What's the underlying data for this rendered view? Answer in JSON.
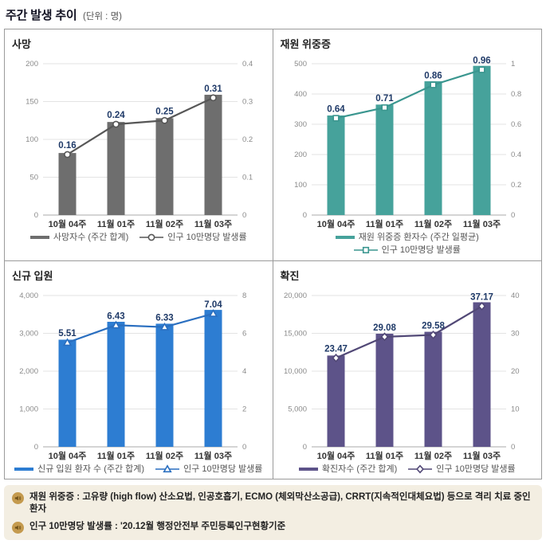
{
  "header": {
    "title": "주간 발생 추이",
    "unit": "(단위 : 명)"
  },
  "chart_data": [
    {
      "type": "bar",
      "title": "사망",
      "categories": [
        "10월 04주",
        "11월 01주",
        "11월 02주",
        "11월 03주"
      ],
      "series": [
        {
          "name": "사망자수 (주간 합계)",
          "type": "bar",
          "axis": "left",
          "values": [
            82,
            123,
            128,
            159
          ]
        },
        {
          "name": "인구 10만명당 발생률",
          "type": "line",
          "axis": "right",
          "values": [
            0.16,
            0.24,
            0.25,
            0.31
          ]
        }
      ],
      "labels": [
        "0.16",
        "0.24",
        "0.25",
        "0.31"
      ],
      "left_axis": {
        "max": 200,
        "ticks": [
          "0",
          "50",
          "100",
          "150",
          "200"
        ]
      },
      "right_axis": {
        "max": 0.4,
        "ticks": [
          "0",
          "0.1",
          "0.2",
          "0.3",
          "0.4"
        ]
      },
      "marker": "circle",
      "colors": {
        "bar": "#6e6e6e",
        "line": "#575757",
        "label": "#1f3a68"
      }
    },
    {
      "type": "bar",
      "title": "재원 위중증",
      "categories": [
        "10월 04주",
        "11월 01주",
        "11월 02주",
        "11월 03주"
      ],
      "series": [
        {
          "name": "재원 위중증 환자수 (주간 일평균)",
          "type": "bar",
          "axis": "left",
          "values": [
            329,
            365,
            442,
            493
          ]
        },
        {
          "name": "인구 10만명당 발생률",
          "type": "line",
          "axis": "right",
          "values": [
            0.64,
            0.71,
            0.86,
            0.96
          ]
        }
      ],
      "labels": [
        "0.64",
        "0.71",
        "0.86",
        "0.96"
      ],
      "left_axis": {
        "max": 500,
        "ticks": [
          "0",
          "100",
          "200",
          "300",
          "400",
          "500"
        ]
      },
      "right_axis": {
        "max": 1,
        "ticks": [
          "0",
          "0.2",
          "0.4",
          "0.6",
          "0.8",
          "1"
        ]
      },
      "marker": "square",
      "colors": {
        "bar": "#46a29b",
        "line": "#3a968f",
        "label": "#1f3a68"
      }
    },
    {
      "type": "bar",
      "title": "신규 입원",
      "categories": [
        "10월 04주",
        "11월 01주",
        "11월 02주",
        "11월 03주"
      ],
      "series": [
        {
          "name": "신규 입원 환자 수 (주간 합계)",
          "type": "bar",
          "axis": "left",
          "values": [
            2832,
            3305,
            3254,
            3619
          ]
        },
        {
          "name": "인구 10만명당 발생률",
          "type": "line",
          "axis": "right",
          "values": [
            5.51,
            6.43,
            6.33,
            7.04
          ]
        }
      ],
      "labels": [
        "5.51",
        "6.43",
        "6.33",
        "7.04"
      ],
      "left_axis": {
        "max": 4000,
        "ticks": [
          "0",
          "1,000",
          "2,000",
          "3,000",
          "4,000"
        ]
      },
      "right_axis": {
        "max": 8,
        "ticks": [
          "0",
          "2",
          "4",
          "6",
          "8"
        ]
      },
      "marker": "triangle",
      "colors": {
        "bar": "#2d7dd2",
        "line": "#2a6fc0",
        "label": "#1f3a68"
      }
    },
    {
      "type": "bar",
      "title": "확진",
      "categories": [
        "10월 04주",
        "11월 01주",
        "11월 02주",
        "11월 03주"
      ],
      "series": [
        {
          "name": "확진자수 (주간 합계)",
          "type": "bar",
          "axis": "left",
          "values": [
            12064,
            14947,
            15204,
            19105
          ]
        },
        {
          "name": "인구 10만명당 발생률",
          "type": "line",
          "axis": "right",
          "values": [
            23.47,
            29.08,
            29.58,
            37.17
          ]
        }
      ],
      "labels": [
        "23.47",
        "29.08",
        "29.58",
        "37.17"
      ],
      "left_axis": {
        "max": 20000,
        "ticks": [
          "0",
          "5,000",
          "10,000",
          "15,000",
          "20,000"
        ]
      },
      "right_axis": {
        "max": 40,
        "ticks": [
          "0",
          "10",
          "20",
          "30",
          "40"
        ]
      },
      "marker": "diamond",
      "colors": {
        "bar": "#5d5389",
        "line": "#514876",
        "label": "#1f3a68"
      }
    }
  ],
  "notes": [
    "재원 위중증 : 고유량 (high flow) 산소요법, 인공호흡기, ECMO (체외막산소공급), CRRT(지속적인대체요법) 등으로 격리 치료 중인 환자",
    "인구 10만명당 발생률 : '20.12월 행정안전부 주민등록인구현황기준"
  ],
  "icons": {
    "note": "speaker-icon"
  }
}
